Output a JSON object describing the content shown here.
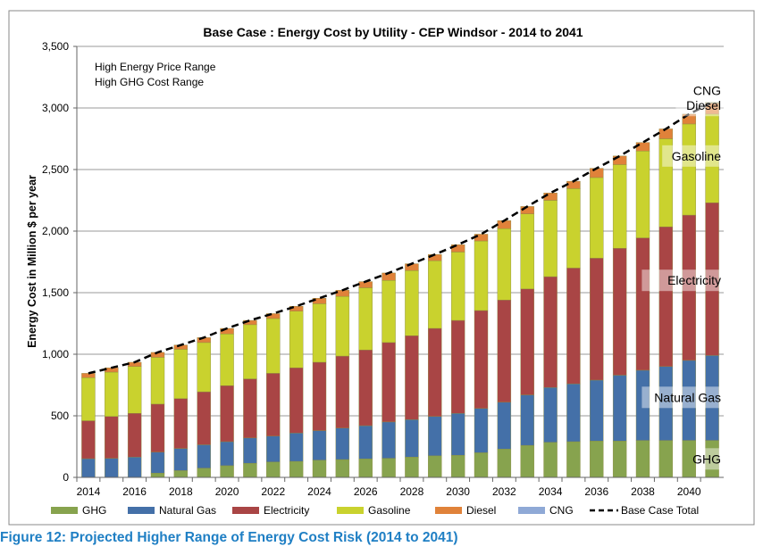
{
  "chart_data": {
    "type": "bar",
    "stacked": true,
    "title": "Base Case : Energy Cost by Utility - CEP Windsor - 2014 to 2041",
    "ylabel": "Energy Cost in Million $ per year",
    "xlabel": "",
    "ylim": [
      0,
      3500
    ],
    "yticks": [
      0,
      500,
      1000,
      1500,
      2000,
      2500,
      3000,
      3500
    ],
    "ytick_labels": [
      "0",
      "500",
      "1,000",
      "1,500",
      "2,000",
      "2,500",
      "3,000",
      "3,500"
    ],
    "grid": true,
    "legend_position": "bottom",
    "annotations": [
      "High Energy Price Range",
      "High GHG Cost Range"
    ],
    "categories": [
      2014,
      2015,
      2016,
      2017,
      2018,
      2019,
      2020,
      2021,
      2022,
      2023,
      2024,
      2025,
      2026,
      2027,
      2028,
      2029,
      2030,
      2031,
      2032,
      2033,
      2034,
      2035,
      2036,
      2037,
      2038,
      2039,
      2040,
      2041
    ],
    "xtick_labels": [
      "2014",
      "2016",
      "2018",
      "2020",
      "2022",
      "2024",
      "2026",
      "2028",
      "2030",
      "2032",
      "2034",
      "2036",
      "2038",
      "2040"
    ],
    "series": [
      {
        "name": "GHG",
        "color": "#87a34e",
        "values": [
          0,
          0,
          0,
          35,
          55,
          75,
          95,
          115,
          125,
          130,
          140,
          145,
          150,
          155,
          165,
          175,
          180,
          200,
          230,
          260,
          285,
          290,
          295,
          295,
          300,
          300,
          300,
          300
        ]
      },
      {
        "name": "Natural Gas",
        "color": "#4470a8",
        "values": [
          152,
          155,
          165,
          170,
          180,
          190,
          195,
          205,
          210,
          230,
          240,
          255,
          270,
          295,
          305,
          320,
          340,
          360,
          380,
          410,
          445,
          470,
          495,
          535,
          570,
          600,
          650,
          690
        ]
      },
      {
        "name": "Electricity",
        "color": "#a94545",
        "values": [
          308,
          340,
          355,
          390,
          405,
          430,
          455,
          480,
          510,
          530,
          555,
          585,
          615,
          645,
          680,
          715,
          755,
          795,
          830,
          860,
          900,
          940,
          990,
          1030,
          1075,
          1135,
          1180,
          1240
        ]
      },
      {
        "name": "Gasoline",
        "color": "#c9d22e",
        "values": [
          350,
          360,
          380,
          380,
          400,
          400,
          420,
          440,
          445,
          460,
          475,
          485,
          505,
          505,
          530,
          550,
          555,
          565,
          580,
          610,
          620,
          645,
          655,
          680,
          705,
          715,
          740,
          720
        ]
      },
      {
        "name": "Diesel",
        "color": "#e0823a",
        "values": [
          35,
          35,
          35,
          40,
          35,
          40,
          45,
          35,
          40,
          40,
          45,
          50,
          50,
          60,
          55,
          50,
          60,
          55,
          65,
          60,
          60,
          60,
          75,
          70,
          70,
          80,
          80,
          90
        ]
      },
      {
        "name": "CNG",
        "color": "#8fa9d6",
        "values": [
          0,
          0,
          0,
          0,
          0,
          0,
          0,
          0,
          0,
          0,
          0,
          0,
          0,
          0,
          0,
          0,
          0,
          0,
          0,
          0,
          0,
          0,
          0,
          0,
          0,
          0,
          0,
          5
        ]
      }
    ],
    "line": {
      "name": "Base Case Total",
      "color": "#000000",
      "values": [
        845,
        890,
        935,
        1015,
        1075,
        1135,
        1210,
        1275,
        1330,
        1390,
        1455,
        1520,
        1590,
        1660,
        1735,
        1810,
        1890,
        1975,
        2085,
        2200,
        2310,
        2405,
        2510,
        2610,
        2720,
        2830,
        2950,
        3045
      ]
    },
    "side_labels": [
      "CNG",
      "Diesel",
      "Gasoline",
      "Electricity",
      "Natural Gas",
      "GHG"
    ]
  },
  "caption": "Figure 12: Projected Higher Range of Energy Cost Risk (2014 to 2041)"
}
